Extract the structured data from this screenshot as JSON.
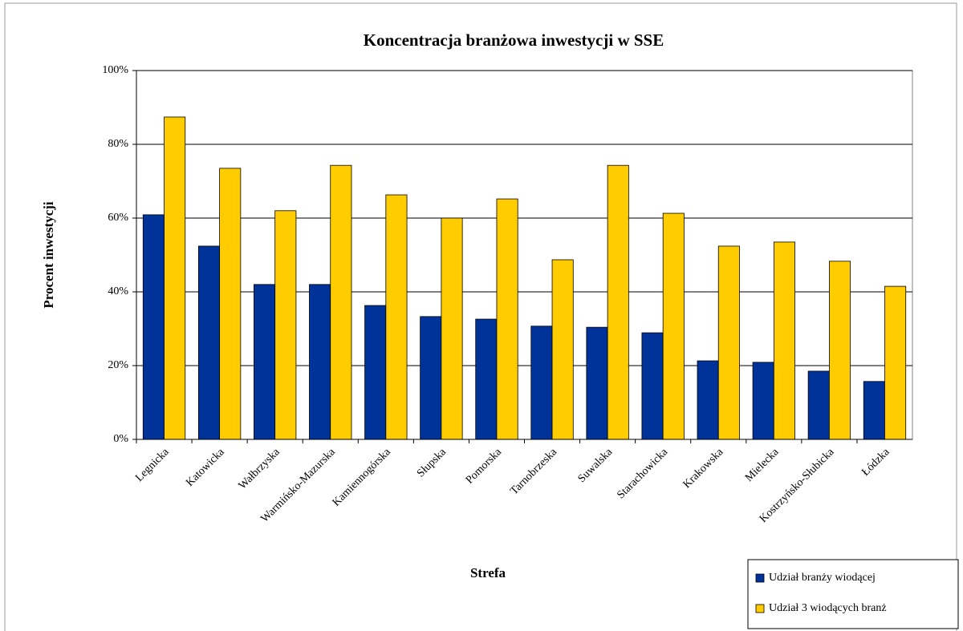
{
  "chart_data": {
    "type": "bar",
    "title": "Koncentracja branżowa inwestycji w SSE",
    "x_label": "Strefa",
    "y_label": "Procent inwestycji",
    "categories": [
      "Legnicka",
      "Katowicka",
      "Wałbrzyska",
      "Warmińsko-Mazurska",
      "Kamiennogórska",
      "Słupska",
      "Pomorska",
      "Tarnobrzeska",
      "Suwalska",
      "Starachowicka",
      "Krakowska",
      "Mielecka",
      "Kostrzyńsko-Słubicka",
      "Łódzka"
    ],
    "series": [
      {
        "name": "Udział branży wiodącej",
        "color": "#003399",
        "values": [
          60.9,
          52.4,
          42,
          42,
          36.3,
          33.3,
          32.6,
          30.7,
          30.4,
          28.9,
          21.3,
          20.9,
          18.5,
          15.7
        ]
      },
      {
        "name": "Udział 3 wiodących branż",
        "color": "#ffcc00",
        "values": [
          87.4,
          73.5,
          62,
          74.3,
          66.3,
          60,
          65.2,
          48.7,
          74.3,
          61.3,
          52.4,
          53.5,
          48.3,
          41.5
        ]
      }
    ],
    "ylim": [
      0,
      100
    ],
    "yticks": [
      {
        "value": 0,
        "label": "0%"
      },
      {
        "value": 20,
        "label": "20%"
      },
      {
        "value": 40,
        "label": "40%"
      },
      {
        "value": 60,
        "label": "60%"
      },
      {
        "value": 80,
        "label": "80%"
      },
      {
        "value": 100,
        "label": "100%"
      }
    ],
    "grid": true,
    "legend": "bottom-right"
  }
}
